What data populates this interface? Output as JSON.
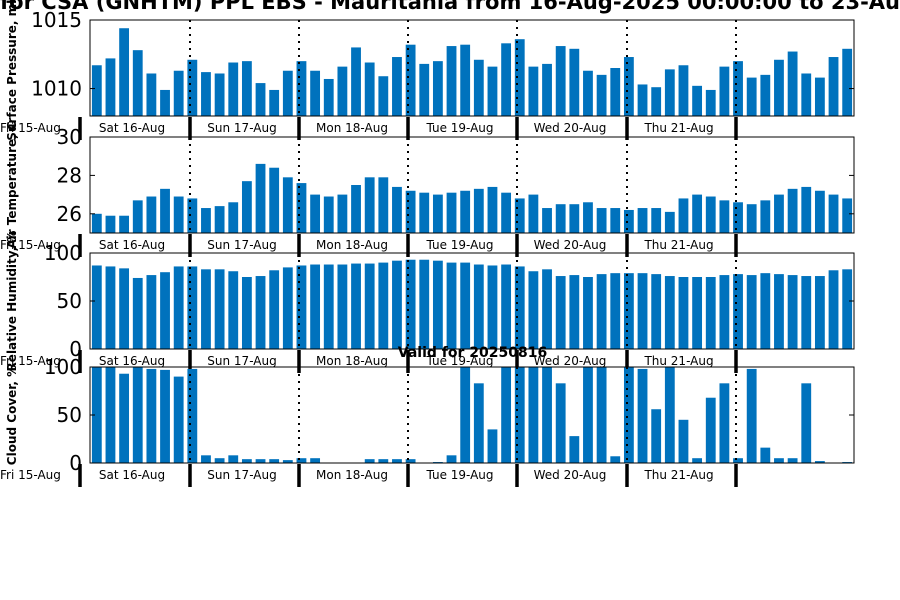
{
  "figure": {
    "title": "for CSA (GNHTM) PPL EBS - Mauritania from 16-Aug-2025 00:00:00 to 23-Au",
    "subtitle": "Valid for 20250816",
    "day_labels": [
      "Sat 16-Aug",
      "Sun 17-Aug",
      "Mon 18-Aug",
      "Tue 19-Aug",
      "Wed 20-Aug",
      "Thu 21-Aug"
    ],
    "start_label": "Fri 15-Aug",
    "bar_color": "#0072bd"
  },
  "chart_data": [
    {
      "type": "bar",
      "ylabel": "Surface Pressure, mb",
      "ylim": [
        1008,
        1015
      ],
      "yticks": [
        1010,
        1015
      ],
      "values": [
        1011.7,
        1012.2,
        1014.4,
        1012.8,
        1011.1,
        1009.9,
        1011.3,
        1012.1,
        1011.2,
        1011.1,
        1011.9,
        1012.0,
        1010.4,
        1009.9,
        1011.3,
        1012.0,
        1011.3,
        1010.7,
        1011.6,
        1013.0,
        1011.9,
        1010.9,
        1012.3,
        1013.2,
        1011.8,
        1012.0,
        1013.1,
        1013.2,
        1012.1,
        1011.6,
        1013.3,
        1013.6,
        1011.6,
        1011.8,
        1013.1,
        1012.9,
        1011.3,
        1011.0,
        1011.5,
        1012.3,
        1010.3,
        1010.1,
        1011.4,
        1011.7,
        1010.2,
        1009.9,
        1011.6,
        1012.0,
        1010.8,
        1011.0,
        1012.1,
        1012.7,
        1011.1,
        1010.8,
        1012.3,
        1012.9
      ]
    },
    {
      "type": "bar",
      "ylabel": "Air Temperature, C",
      "ylim": [
        25,
        30
      ],
      "yticks": [
        26,
        28,
        30
      ],
      "values": [
        26.0,
        25.9,
        25.9,
        26.7,
        26.9,
        27.3,
        26.9,
        26.8,
        26.3,
        26.4,
        26.6,
        27.7,
        28.6,
        28.4,
        27.9,
        27.6,
        27.0,
        26.9,
        27.0,
        27.5,
        27.9,
        27.9,
        27.4,
        27.2,
        27.1,
        27.0,
        27.1,
        27.2,
        27.3,
        27.4,
        27.1,
        26.8,
        27.0,
        26.3,
        26.5,
        26.5,
        26.6,
        26.3,
        26.3,
        26.2,
        26.3,
        26.3,
        26.1,
        26.8,
        27.0,
        26.9,
        26.7,
        26.6,
        26.5,
        26.7,
        27.0,
        27.3,
        27.4,
        27.2,
        27.0,
        26.8
      ]
    },
    {
      "type": "bar",
      "ylabel": "Relative Humidity, %",
      "ylim": [
        0,
        100
      ],
      "yticks": [
        0,
        50,
        100
      ],
      "values": [
        87,
        86,
        84,
        74,
        77,
        80,
        86,
        86,
        83,
        83,
        81,
        75,
        76,
        82,
        85,
        87,
        88,
        88,
        88,
        89,
        89,
        90,
        92,
        93,
        93,
        92,
        90,
        90,
        88,
        87,
        88,
        86,
        81,
        83,
        76,
        77,
        75,
        78,
        79,
        79,
        79,
        78,
        76,
        75,
        75,
        75,
        77,
        78,
        77,
        79,
        78,
        77,
        76,
        76,
        82,
        83
      ]
    },
    {
      "type": "bar",
      "ylabel": "Cloud Cover, %",
      "ylim": [
        0,
        100
      ],
      "yticks": [
        0,
        50,
        100
      ],
      "values": [
        100,
        100,
        93,
        100,
        98,
        97,
        90,
        98,
        8,
        5,
        8,
        4,
        4,
        4,
        3,
        5,
        5,
        0,
        0,
        0,
        4,
        4,
        4,
        4,
        0,
        1,
        8,
        100,
        83,
        35,
        100,
        100,
        100,
        100,
        83,
        28,
        100,
        100,
        7,
        100,
        98,
        56,
        100,
        45,
        5,
        68,
        83,
        5,
        98,
        16,
        5,
        5,
        83,
        2,
        0,
        1
      ]
    }
  ]
}
